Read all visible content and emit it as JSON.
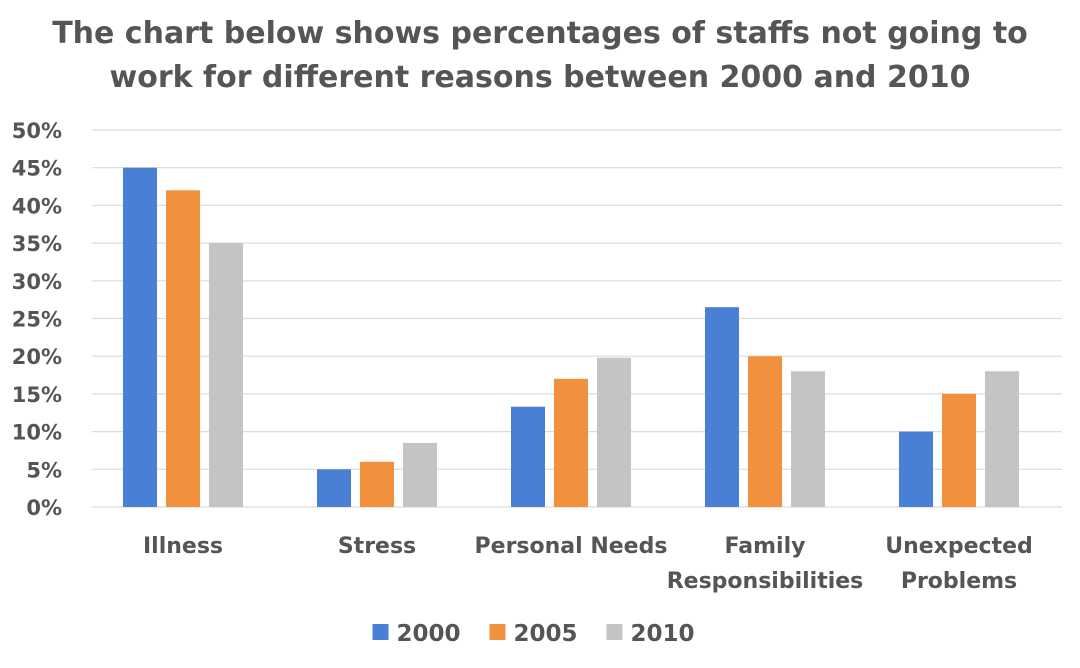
{
  "chart_data": {
    "type": "bar",
    "title_lines": [
      "The chart below shows percentages of staffs not going to",
      "work for different reasons between 2000 and 2010"
    ],
    "xlabel": "",
    "ylabel": "",
    "ylim": [
      0,
      50
    ],
    "y_ticks": [
      0,
      5,
      10,
      15,
      20,
      25,
      30,
      35,
      40,
      45,
      50
    ],
    "y_tick_labels": [
      "0%",
      "5%",
      "10%",
      "15%",
      "20%",
      "25%",
      "30%",
      "35%",
      "40%",
      "45%",
      "50%"
    ],
    "grid": true,
    "legend_position": "bottom",
    "categories": [
      [
        "Illness"
      ],
      [
        "Stress"
      ],
      [
        "Personal Needs"
      ],
      [
        "Family",
        "Responsibilities"
      ],
      [
        "Unexpected",
        "Problems"
      ]
    ],
    "series": [
      {
        "name": "2000",
        "color": "#4a7fd6",
        "values": [
          45,
          5,
          13.3,
          26.5,
          10
        ]
      },
      {
        "name": "2005",
        "color": "#f2913d",
        "values": [
          42,
          6,
          17,
          20,
          15
        ]
      },
      {
        "name": "2010",
        "color": "#c4c4c4",
        "values": [
          35,
          8.5,
          19.8,
          18,
          18
        ]
      }
    ]
  }
}
